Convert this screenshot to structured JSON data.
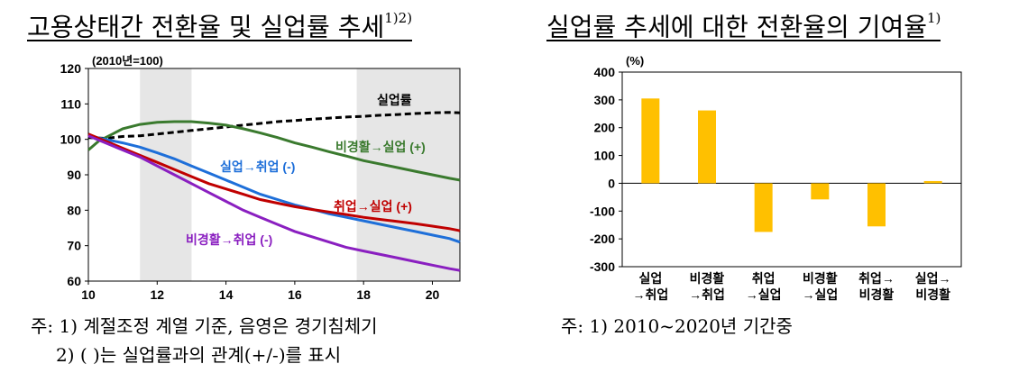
{
  "left": {
    "title": "고용상태간 전환율 및 실업률 추세",
    "title_sup": "1)2)",
    "notes": [
      "주: 1) 계절조정 계열 기준, 음영은 경기침체기",
      "2) ( )는 실업률과의 관계(+/-)를 표시"
    ]
  },
  "right": {
    "title": "실업률 추세에 대한 전환율의 기여율",
    "title_sup": "1)",
    "notes": [
      "주: 1) 2010~2020년 기간중"
    ]
  },
  "chart_data": [
    {
      "type": "line",
      "unit_label": "(2010년=100)",
      "xlim": [
        10,
        20.8
      ],
      "ylim": [
        60,
        120
      ],
      "xticks": [
        10,
        12,
        14,
        16,
        18,
        20
      ],
      "yticks": [
        60,
        70,
        80,
        90,
        100,
        110,
        120
      ],
      "shaded_ranges": [
        [
          11.5,
          13
        ],
        [
          17.8,
          20.8
        ]
      ],
      "colors": {
        "shade": "#e6e6e6"
      },
      "series": [
        {
          "name": "실업률",
          "color": "#000000",
          "dash": true,
          "points": [
            [
              10,
              100.5
            ],
            [
              10.5,
              100.3
            ],
            [
              11,
              100.8
            ],
            [
              11.5,
              101
            ],
            [
              12,
              101.5
            ],
            [
              12.5,
              102
            ],
            [
              13,
              102.5
            ],
            [
              13.5,
              103
            ],
            [
              14,
              103.5
            ],
            [
              14.5,
              104
            ],
            [
              15,
              104.5
            ],
            [
              15.5,
              105
            ],
            [
              16,
              105.3
            ],
            [
              16.5,
              105.7
            ],
            [
              17,
              106
            ],
            [
              17.5,
              106.3
            ],
            [
              18,
              106.5
            ],
            [
              18.5,
              106.8
            ],
            [
              19,
              107
            ],
            [
              19.5,
              107.3
            ],
            [
              20,
              107.5
            ],
            [
              20.5,
              107.6
            ],
            [
              20.8,
              107.5
            ]
          ]
        },
        {
          "name": "비경활→실업 (+)",
          "color": "#3a7a2e",
          "dash": false,
          "points": [
            [
              10,
              97
            ],
            [
              10.3,
              99.5
            ],
            [
              10.7,
              101.5
            ],
            [
              11,
              103
            ],
            [
              11.5,
              104.2
            ],
            [
              12,
              104.8
            ],
            [
              12.5,
              105
            ],
            [
              13,
              105
            ],
            [
              13.5,
              104.6
            ],
            [
              14,
              104
            ],
            [
              14.5,
              103
            ],
            [
              15,
              101.8
            ],
            [
              15.5,
              100.5
            ],
            [
              16,
              99
            ],
            [
              16.5,
              97.8
            ],
            [
              17,
              96.5
            ],
            [
              17.5,
              95.3
            ],
            [
              18,
              94
            ],
            [
              18.5,
              93
            ],
            [
              19,
              92
            ],
            [
              19.5,
              91
            ],
            [
              20,
              90
            ],
            [
              20.5,
              89
            ],
            [
              20.8,
              88.5
            ]
          ]
        },
        {
          "name": "실업→취업 (-)",
          "color": "#1e6fd9",
          "dash": false,
          "points": [
            [
              10,
              101
            ],
            [
              10.5,
              100
            ],
            [
              11,
              99
            ],
            [
              11.5,
              97.8
            ],
            [
              12,
              96.2
            ],
            [
              12.5,
              94.5
            ],
            [
              13,
              92.5
            ],
            [
              13.5,
              90.5
            ],
            [
              14,
              88.5
            ],
            [
              14.5,
              86.5
            ],
            [
              15,
              84.5
            ],
            [
              15.5,
              83
            ],
            [
              16,
              81.5
            ],
            [
              16.5,
              80.3
            ],
            [
              17,
              79
            ],
            [
              17.5,
              78
            ],
            [
              18,
              77
            ],
            [
              18.5,
              76
            ],
            [
              19,
              75
            ],
            [
              19.5,
              74
            ],
            [
              20,
              73
            ],
            [
              20.5,
              72
            ],
            [
              20.8,
              71
            ]
          ]
        },
        {
          "name": "취업→실업 (+)",
          "color": "#c00000",
          "dash": false,
          "points": [
            [
              10,
              101.5
            ],
            [
              10.5,
              99.5
            ],
            [
              11,
              97.5
            ],
            [
              11.5,
              95.5
            ],
            [
              12,
              93.5
            ],
            [
              12.5,
              91.5
            ],
            [
              13,
              89.5
            ],
            [
              13.5,
              87.5
            ],
            [
              14,
              86
            ],
            [
              14.5,
              84.5
            ],
            [
              15,
              83
            ],
            [
              15.5,
              82
            ],
            [
              16,
              81
            ],
            [
              16.5,
              80.2
            ],
            [
              17,
              79.5
            ],
            [
              17.5,
              78.8
            ],
            [
              18,
              78
            ],
            [
              18.5,
              77.4
            ],
            [
              19,
              76.8
            ],
            [
              19.5,
              76.2
            ],
            [
              20,
              75.5
            ],
            [
              20.5,
              74.8
            ],
            [
              20.8,
              74.2
            ]
          ]
        },
        {
          "name": "비경활→취업 (-)",
          "color": "#8a1fc0",
          "dash": false,
          "points": [
            [
              10,
              101
            ],
            [
              10.5,
              99
            ],
            [
              11,
              97
            ],
            [
              11.5,
              95
            ],
            [
              12,
              92.5
            ],
            [
              12.5,
              90
            ],
            [
              13,
              87.5
            ],
            [
              13.5,
              85
            ],
            [
              14,
              82.5
            ],
            [
              14.5,
              80
            ],
            [
              15,
              78
            ],
            [
              15.5,
              76
            ],
            [
              16,
              74
            ],
            [
              16.5,
              72.5
            ],
            [
              17,
              71
            ],
            [
              17.5,
              69.5
            ],
            [
              18,
              68.5
            ],
            [
              18.5,
              67.5
            ],
            [
              19,
              66.5
            ],
            [
              19.5,
              65.5
            ],
            [
              20,
              64.5
            ],
            [
              20.5,
              63.5
            ],
            [
              20.8,
              63
            ]
          ]
        }
      ]
    },
    {
      "type": "bar",
      "unit_label": "(%)",
      "ylim": [
        -300,
        400
      ],
      "yticks": [
        -300,
        -200,
        -100,
        0,
        100,
        200,
        300,
        400
      ],
      "categories": [
        [
          "실업",
          "→취업"
        ],
        [
          "비경활",
          "→취업"
        ],
        [
          "취업",
          "→실업"
        ],
        [
          "비경활",
          "→실업"
        ],
        [
          "취업→",
          "비경활"
        ],
        [
          "실업→",
          "비경활"
        ]
      ],
      "values": [
        305,
        262,
        -175,
        -58,
        -155,
        8
      ],
      "color": "#ffc000"
    }
  ]
}
